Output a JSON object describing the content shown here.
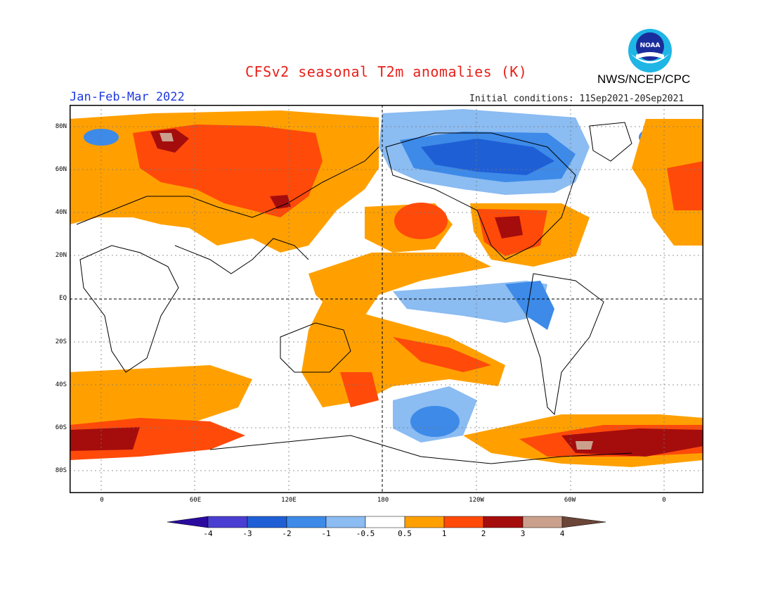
{
  "header": {
    "title": "CFSv2 seasonal T2m anomalies (K)",
    "agency": "NWS/NCEP/CPC",
    "season": "Jan-Feb-Mar 2022",
    "initial_conditions": "Initial conditions: 11Sep2021-20Sep2021",
    "logo_text": "NOAA"
  },
  "map": {
    "projection": "equirectangular",
    "lat_labels": [
      "80N",
      "60N",
      "40N",
      "20N",
      "EQ",
      "20S",
      "40S",
      "60S",
      "80S"
    ],
    "lon_labels": [
      "0",
      "60E",
      "120E",
      "180",
      "120W",
      "60W",
      "0"
    ],
    "gridlines": "dotted",
    "reference_lines": [
      "EQ",
      "180"
    ]
  },
  "colorbar": {
    "labels": [
      "-4",
      "-3",
      "-2",
      "-1",
      "-0.5",
      "0.5",
      "1",
      "2",
      "3",
      "4"
    ],
    "colors": [
      "#2a0b9e",
      "#4a3ed2",
      "#1f5fd6",
      "#3d8ae8",
      "#8bbcf2",
      "#ffffff",
      "#ffa000",
      "#ff4a0a",
      "#a50d0d",
      "#caa08c",
      "#6b4538"
    ]
  },
  "colors": {
    "title": "#e8201a",
    "season": "#1f39e0",
    "land_outline": "#000000"
  }
}
